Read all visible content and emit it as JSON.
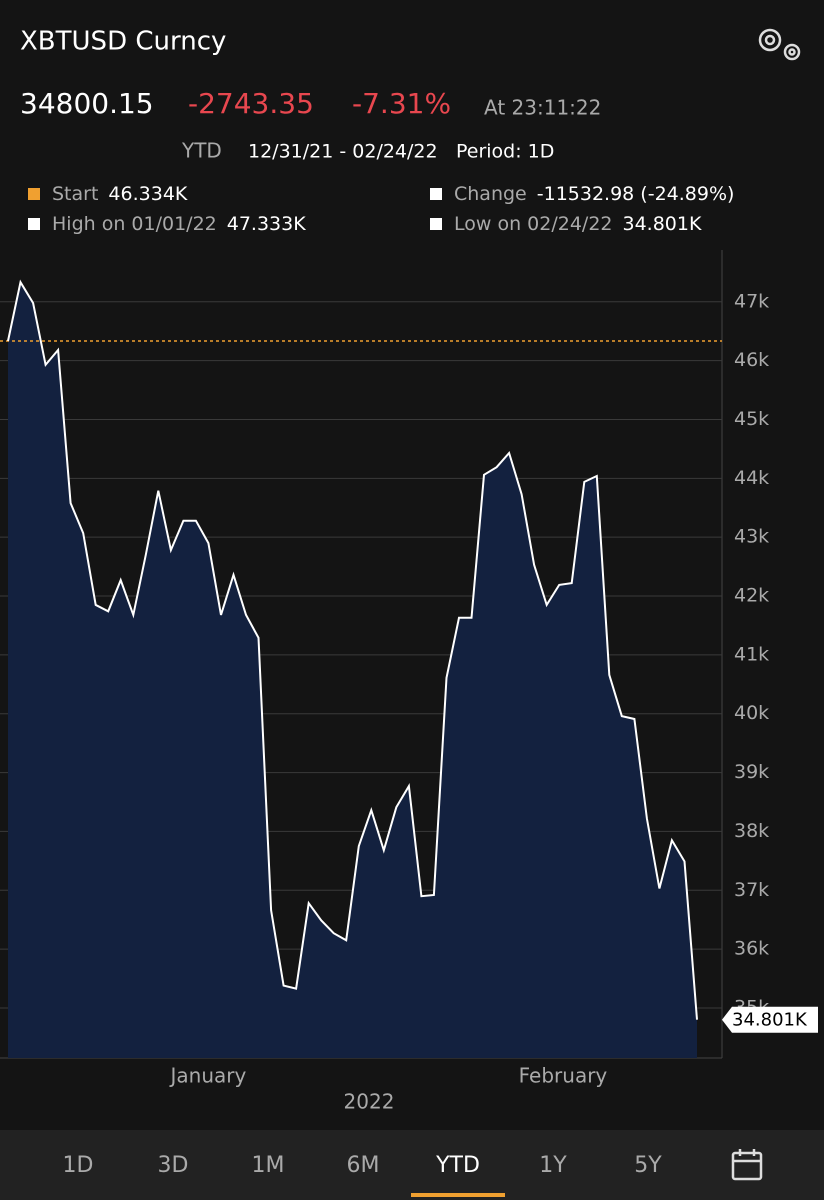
{
  "header": {
    "title": "XBTUSD Curncy",
    "price": "34800.15",
    "change": "-2743.35",
    "change_pct": "-7.31%",
    "time": "At 23:11:22",
    "range_label": "YTD",
    "dates": "12/31/21 - 02/24/22",
    "period": "Period: 1D"
  },
  "stats": [
    {
      "label": "Start",
      "value": "46.334K",
      "color": "#f0a030"
    },
    {
      "label": "Change",
      "value": "-11532.98 (-24.89%)",
      "color": "#ffffff"
    },
    {
      "label": "High on 01/01/22",
      "value": "47.333K",
      "color": "#ffffff"
    },
    {
      "label": "Low on 02/24/22",
      "value": "34.801K",
      "color": "#ffffff"
    }
  ],
  "chart_data": {
    "type": "area",
    "color": "#13213f",
    "line_color": "#ffffff",
    "values": [
      46.334,
      47.333,
      46.98,
      45.93,
      46.18,
      43.58,
      43.07,
      41.85,
      41.74,
      42.27,
      41.68,
      42.7,
      43.79,
      42.78,
      43.28,
      43.28,
      42.9,
      41.68,
      42.36,
      41.68,
      41.29,
      36.66,
      35.38,
      35.33,
      36.78,
      36.49,
      36.27,
      36.15,
      37.75,
      38.36,
      37.68,
      38.41,
      38.77,
      36.9,
      36.92,
      40.61,
      41.63,
      41.63,
      44.06,
      44.19,
      44.43,
      43.73,
      42.53,
      41.85,
      42.19,
      42.22,
      43.94,
      44.04,
      40.66,
      39.96,
      39.91,
      38.22,
      37.03,
      37.85,
      37.49,
      34.801
    ],
    "xlim": [
      0,
      55
    ],
    "xticks": [
      {
        "value": 16,
        "label": "January"
      },
      {
        "value": 44.3,
        "label": "February"
      }
    ],
    "x_label": "2022",
    "ylim": [
      34.15,
      47.88
    ],
    "yticks": [
      {
        "value": 35,
        "label": "35k"
      },
      {
        "value": 36,
        "label": "36k"
      },
      {
        "value": 37,
        "label": "37k"
      },
      {
        "value": 38,
        "label": "38k"
      },
      {
        "value": 39,
        "label": "39k"
      },
      {
        "value": 40,
        "label": "40k"
      },
      {
        "value": 41,
        "label": "41k"
      },
      {
        "value": 42,
        "label": "42k"
      },
      {
        "value": 43,
        "label": "43k"
      },
      {
        "value": 44,
        "label": "44k"
      },
      {
        "value": 45,
        "label": "45k"
      },
      {
        "value": 46,
        "label": "46k"
      },
      {
        "value": 47,
        "label": "47k"
      }
    ],
    "grid": true,
    "reference_line": {
      "value": 46.334,
      "color": "#f0a030"
    },
    "last_label": "34.801K"
  },
  "tabs": [
    "1D",
    "3D",
    "1M",
    "6M",
    "YTD",
    "1Y",
    "5Y"
  ],
  "selected_tab": 4
}
